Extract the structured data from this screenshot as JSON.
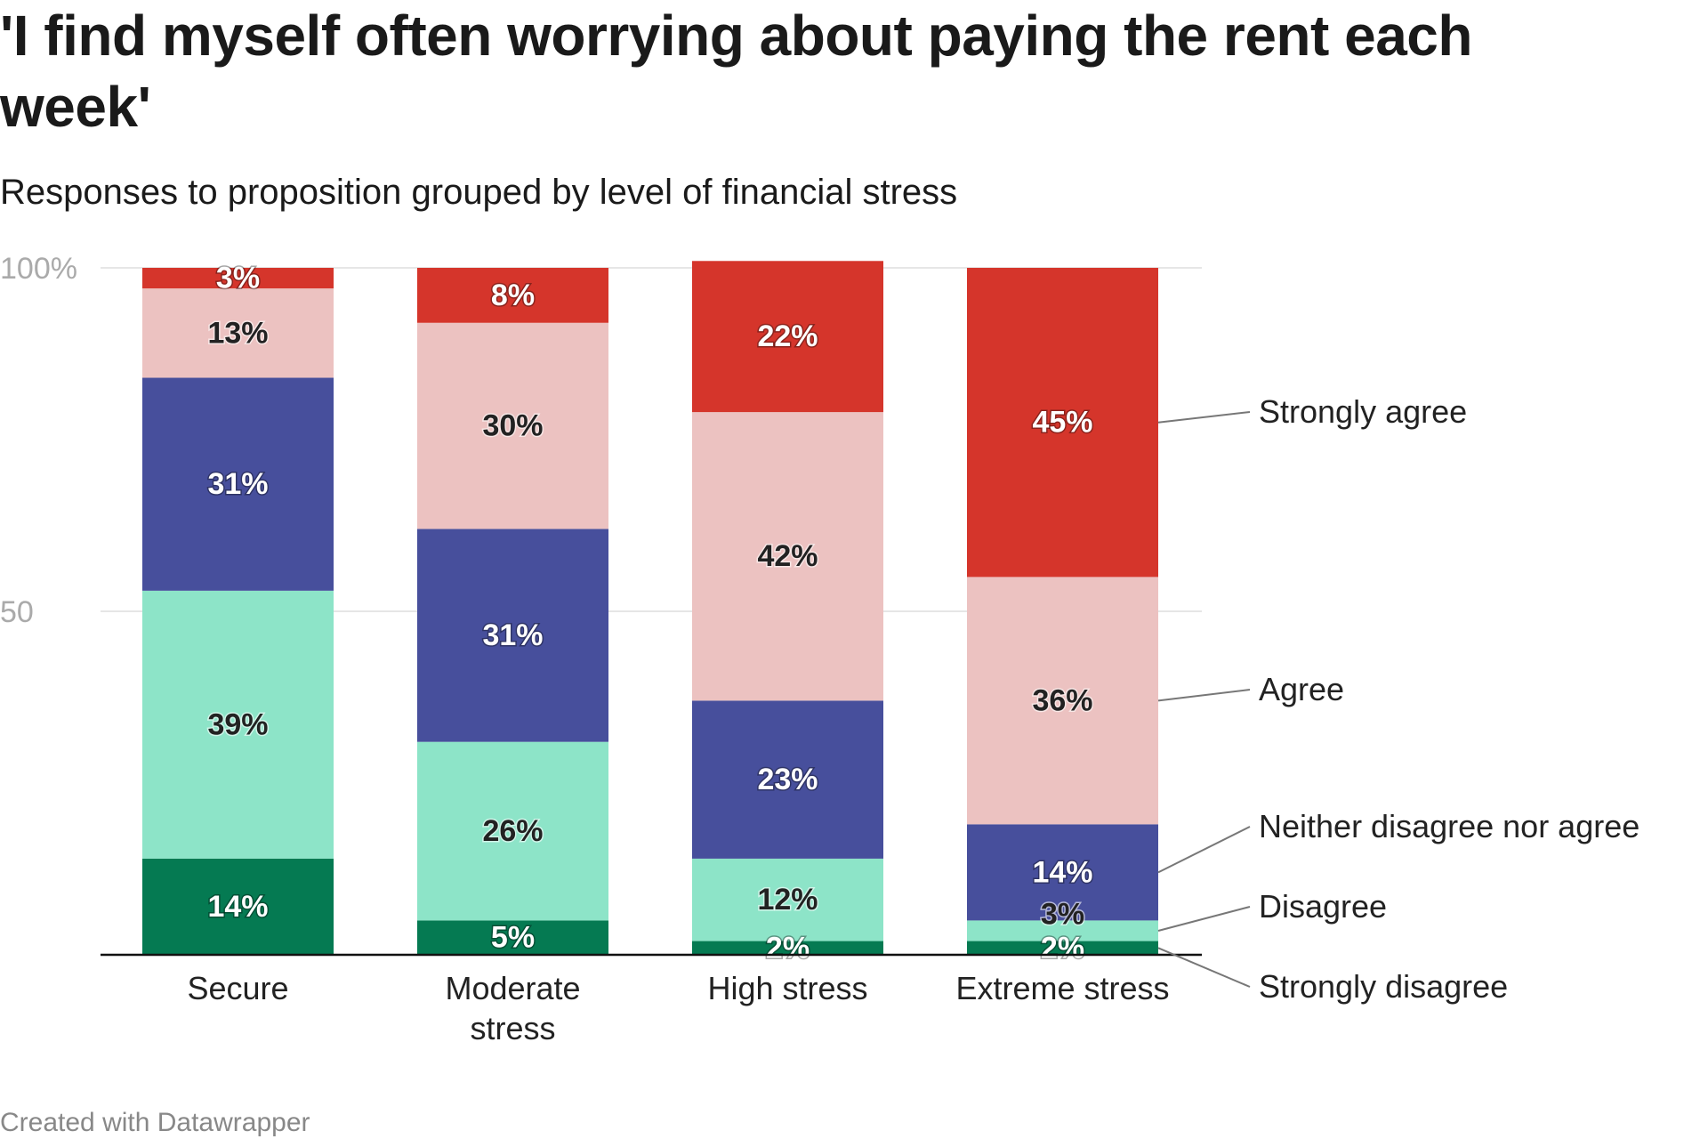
{
  "chart_data": {
    "type": "bar",
    "stacked": true,
    "title": "'I find myself often worrying about paying the rent each week'",
    "subtitle": "Responses to proposition grouped by level of financial stress",
    "footer": "Created with Datawrapper",
    "categories": [
      "Secure",
      "Moderate stress",
      "High stress",
      "Extreme stress"
    ],
    "category_lines": [
      [
        "Secure"
      ],
      [
        "Moderate",
        "stress"
      ],
      [
        "High stress"
      ],
      [
        "Extreme stress"
      ]
    ],
    "ylim": [
      0,
      100
    ],
    "yticks": [
      {
        "value": 100,
        "label": "100%"
      },
      {
        "value": 50,
        "label": "50"
      }
    ],
    "grid": true,
    "legend_placement": "right (direct labels)",
    "series": [
      {
        "name": "Strongly disagree",
        "color": "#057a52",
        "label_style": "light",
        "values": [
          14,
          5,
          2,
          2
        ]
      },
      {
        "name": "Disagree",
        "color": "#8de4c8",
        "label_style": "dark",
        "values": [
          39,
          26,
          12,
          3
        ]
      },
      {
        "name": "Neither disagree nor agree",
        "color": "#474f9c",
        "label_style": "light",
        "values": [
          31,
          31,
          23,
          14
        ]
      },
      {
        "name": "Agree",
        "color": "#ecc2c1",
        "label_style": "dark",
        "values": [
          13,
          30,
          42,
          36
        ]
      },
      {
        "name": "Strongly agree",
        "color": "#d5352b",
        "label_style": "light",
        "values": [
          3,
          8,
          22,
          45
        ]
      }
    ],
    "value_suffix": "%"
  }
}
